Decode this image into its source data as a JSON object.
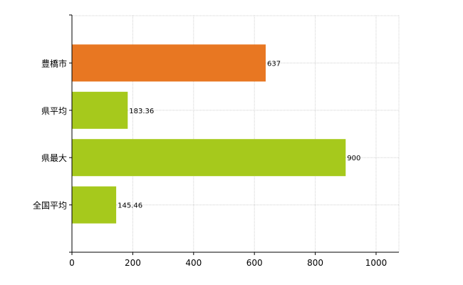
{
  "chart_data": {
    "type": "bar",
    "orientation": "horizontal",
    "categories": [
      "豊橋市",
      "県平均",
      "県最大",
      "全国平均"
    ],
    "values": [
      637,
      183.36,
      900,
      145.46
    ],
    "data_labels": [
      "637",
      "183.36",
      "900",
      "145.46"
    ],
    "bar_colors": [
      "#e87722",
      "#a6c91c",
      "#a6c91c",
      "#a6c91c"
    ],
    "xlim": [
      0,
      1075
    ],
    "x_ticks": [
      0,
      200,
      400,
      600,
      800,
      1000
    ],
    "x_tick_labels": [
      "0",
      "200",
      "400",
      "600",
      "800",
      "1000"
    ],
    "grid": true,
    "title": "",
    "xlabel": "",
    "ylabel": ""
  }
}
